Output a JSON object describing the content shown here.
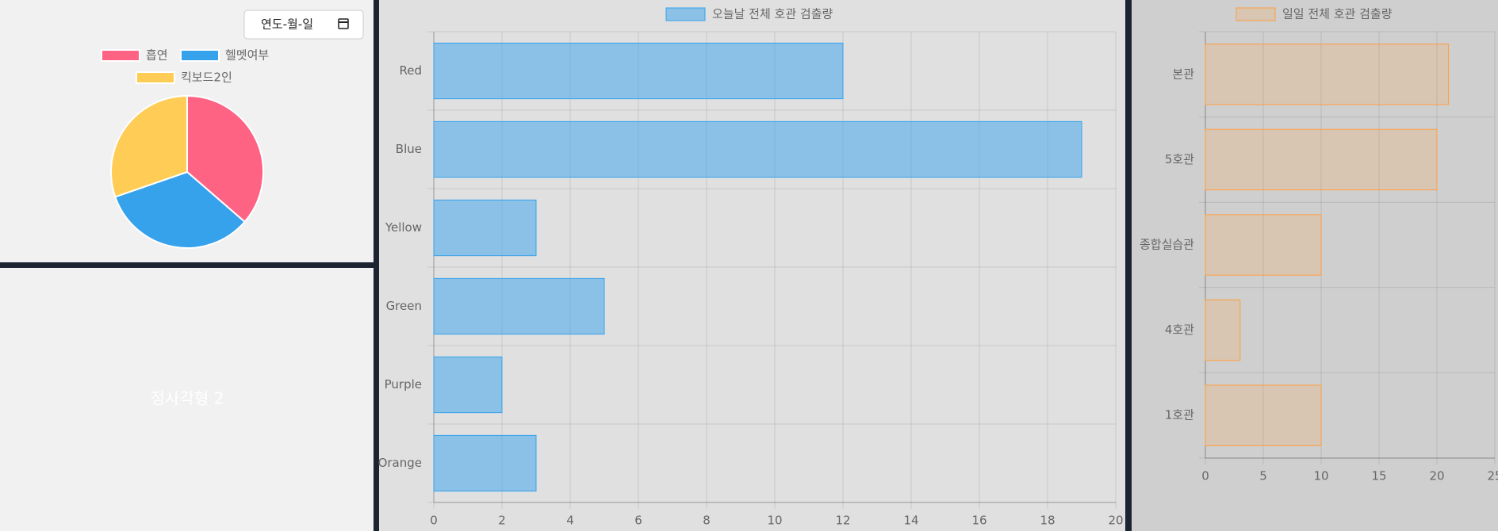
{
  "date_input": {
    "placeholder": "연도-월-일"
  },
  "panel_label": "정사각형 2",
  "chart_data": [
    {
      "type": "pie",
      "categories": [
        "흡연",
        "헬멧여부",
        "킥보드2인"
      ],
      "values": [
        12,
        11,
        10
      ],
      "colors": [
        "#ff6384",
        "#36a2eb",
        "#ffcd56"
      ]
    },
    {
      "type": "bar",
      "orientation": "horizontal",
      "categories": [
        "Red",
        "Blue",
        "Yellow",
        "Green",
        "Purple",
        "Orange"
      ],
      "series": [
        {
          "name": "오늘날 전체 호관 검출량",
          "color": "#36a2eb",
          "fill_opacity": 0.5,
          "values": [
            12,
            19,
            3,
            5,
            2,
            3
          ]
        }
      ],
      "xlim": [
        0,
        20
      ],
      "xticks": [
        0,
        2,
        4,
        6,
        8,
        10,
        12,
        14,
        16,
        18,
        20
      ],
      "grid": true
    },
    {
      "type": "bar",
      "orientation": "horizontal",
      "categories": [
        "본관",
        "5호관",
        "종합실습관",
        "4호관",
        "1호관"
      ],
      "series": [
        {
          "name": "일일 전체 호관 검출량",
          "color": "#ff9f40",
          "fill_opacity": 0.2,
          "values": [
            21,
            20,
            10,
            3,
            10
          ]
        }
      ],
      "xlim": [
        0,
        25
      ],
      "xticks": [
        0,
        5,
        10,
        15,
        20,
        25
      ],
      "grid": true
    }
  ]
}
